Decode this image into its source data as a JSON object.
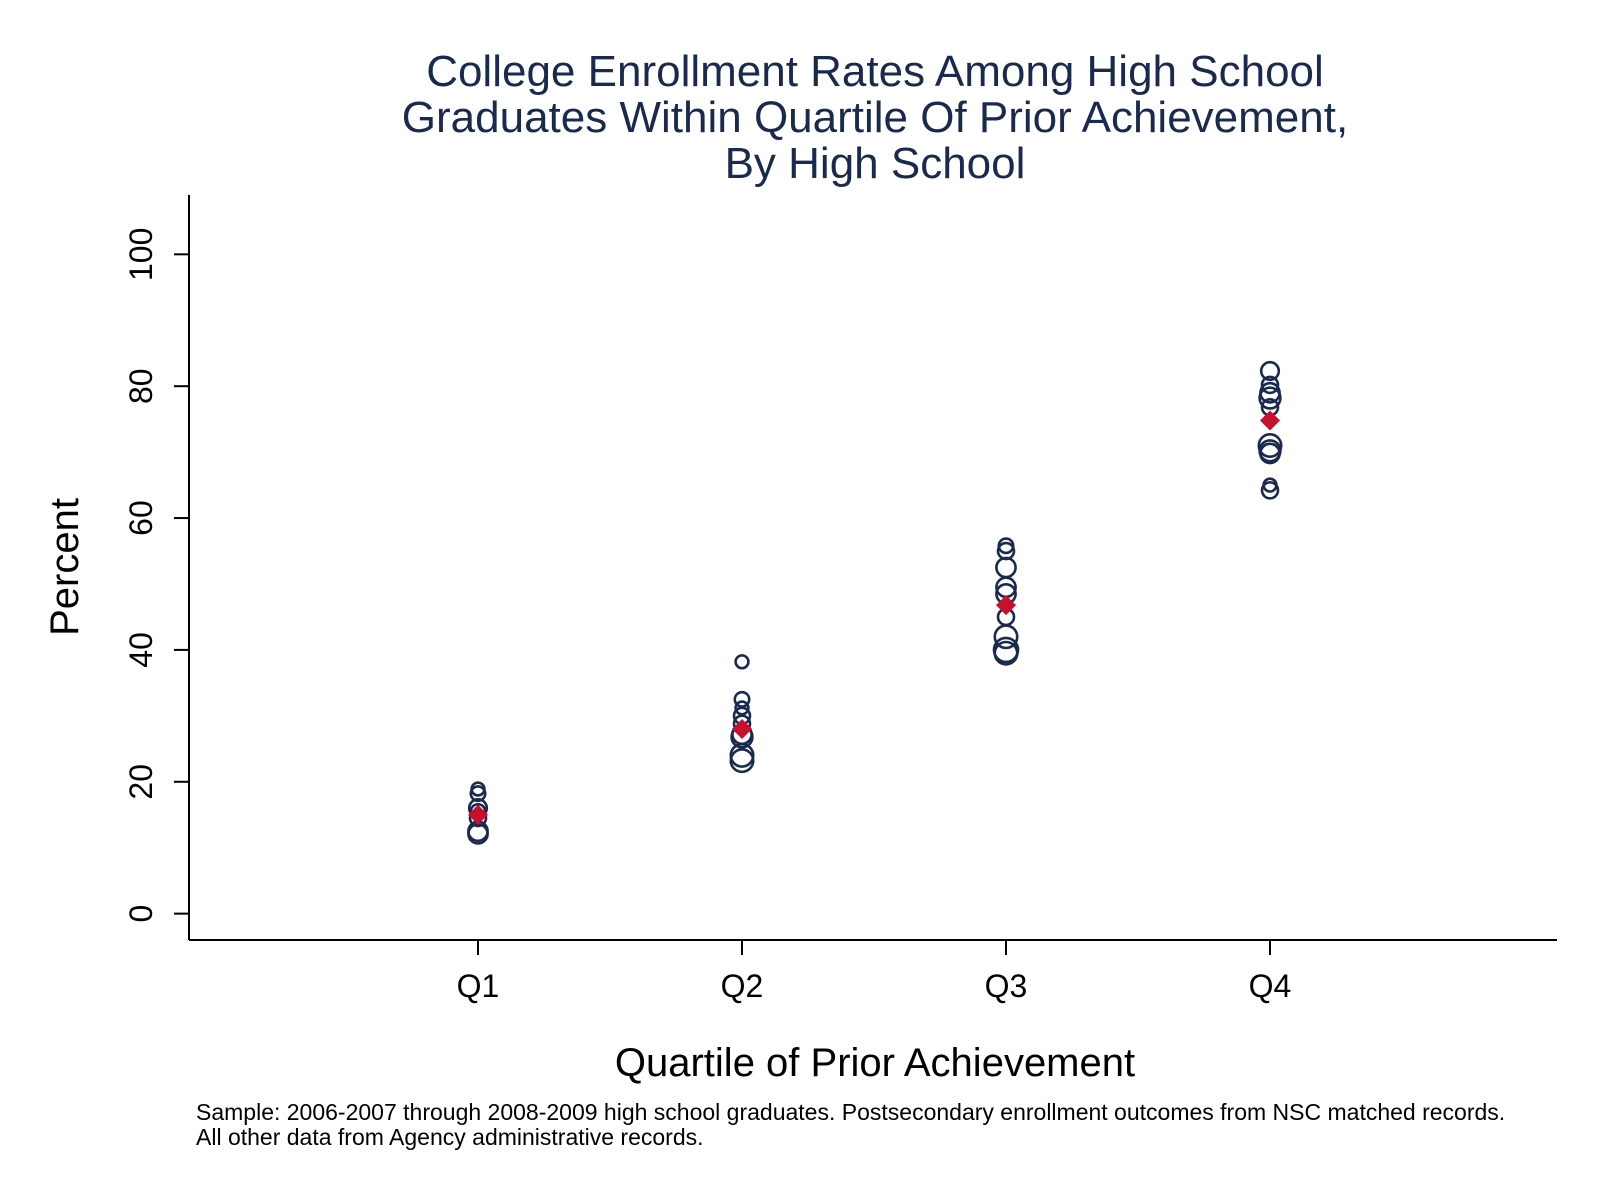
{
  "chart_data": {
    "type": "scatter",
    "title": [
      "College Enrollment Rates Among High School",
      "Graduates Within Quartile Of Prior Achievement,",
      "By High School"
    ],
    "xlabel": "Quartile of Prior Achievement",
    "ylabel": "Percent",
    "categories": [
      "Q1",
      "Q2",
      "Q3",
      "Q4"
    ],
    "y_ticks": [
      "0",
      "20",
      "40",
      "60",
      "80",
      "100"
    ],
    "ylim": [
      -4,
      109
    ],
    "grid": false,
    "legend": "none",
    "note": [
      "Sample: 2006-2007 through 2008-2009 high school graduates. Postsecondary enrollment outcomes from NSC matched records.",
      "All other data from Agency administrative records."
    ],
    "series": [
      {
        "marker": "hollow-circle",
        "color": "#1a2a4f",
        "points": [
          {
            "x": "Q1",
            "y": 18.9,
            "size": 0.8
          },
          {
            "x": "Q1",
            "y": 18.2,
            "size": 0.9
          },
          {
            "x": "Q1",
            "y": 16.0,
            "size": 1.1
          },
          {
            "x": "Q1",
            "y": 15.5,
            "size": 0.9
          },
          {
            "x": "Q1",
            "y": 14.5,
            "size": 1.0
          },
          {
            "x": "Q1",
            "y": 12.5,
            "size": 1.2
          },
          {
            "x": "Q1",
            "y": 12.1,
            "size": 1.2
          },
          {
            "x": "Q2",
            "y": 38.2,
            "size": 0.8
          },
          {
            "x": "Q2",
            "y": 32.5,
            "size": 0.9
          },
          {
            "x": "Q2",
            "y": 31.2,
            "size": 0.8
          },
          {
            "x": "Q2",
            "y": 30.0,
            "size": 1.0
          },
          {
            "x": "Q2",
            "y": 28.8,
            "size": 1.0
          },
          {
            "x": "Q2",
            "y": 27.2,
            "size": 1.2
          },
          {
            "x": "Q2",
            "y": 26.8,
            "size": 1.3
          },
          {
            "x": "Q2",
            "y": 24.0,
            "size": 1.4
          },
          {
            "x": "Q2",
            "y": 23.2,
            "size": 1.4
          },
          {
            "x": "Q3",
            "y": 55.8,
            "size": 0.9
          },
          {
            "x": "Q3",
            "y": 55.0,
            "size": 1.0
          },
          {
            "x": "Q3",
            "y": 52.5,
            "size": 1.2
          },
          {
            "x": "Q3",
            "y": 49.5,
            "size": 1.2
          },
          {
            "x": "Q3",
            "y": 48.5,
            "size": 1.2
          },
          {
            "x": "Q3",
            "y": 45.0,
            "size": 1.0
          },
          {
            "x": "Q3",
            "y": 42.0,
            "size": 1.4
          },
          {
            "x": "Q3",
            "y": 40.0,
            "size": 1.5
          },
          {
            "x": "Q3",
            "y": 39.5,
            "size": 1.4
          },
          {
            "x": "Q4",
            "y": 82.3,
            "size": 1.1
          },
          {
            "x": "Q4",
            "y": 80.2,
            "size": 1.0
          },
          {
            "x": "Q4",
            "y": 79.0,
            "size": 1.2
          },
          {
            "x": "Q4",
            "y": 78.2,
            "size": 1.3
          },
          {
            "x": "Q4",
            "y": 76.8,
            "size": 1.0
          },
          {
            "x": "Q4",
            "y": 71.0,
            "size": 1.4
          },
          {
            "x": "Q4",
            "y": 70.2,
            "size": 1.3
          },
          {
            "x": "Q4",
            "y": 69.8,
            "size": 1.2
          },
          {
            "x": "Q4",
            "y": 65.0,
            "size": 0.8
          },
          {
            "x": "Q4",
            "y": 64.2,
            "size": 1.0
          }
        ]
      },
      {
        "marker": "filled-diamond",
        "color": "#c8102e",
        "points": [
          {
            "x": "Q1",
            "y": 15.0
          },
          {
            "x": "Q2",
            "y": 28.0
          },
          {
            "x": "Q3",
            "y": 46.8
          },
          {
            "x": "Q4",
            "y": 74.8
          }
        ]
      }
    ]
  }
}
